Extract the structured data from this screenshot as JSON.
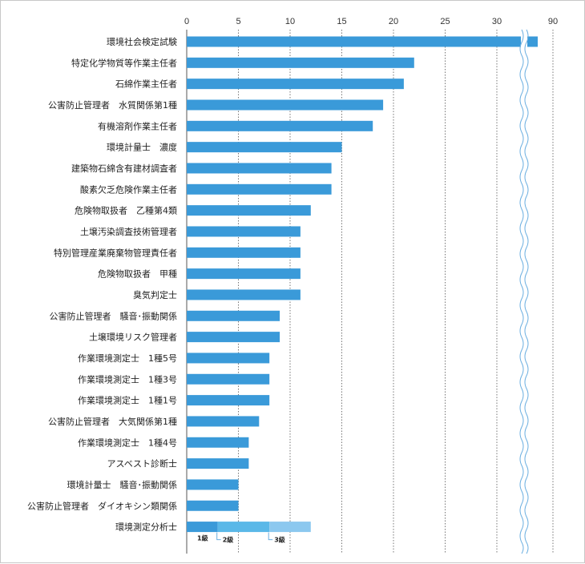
{
  "chart_data": {
    "type": "bar",
    "orientation": "horizontal",
    "title": "",
    "xlabel": "",
    "ylabel": "",
    "xlim": [
      0,
      30
    ],
    "x_break": {
      "after": 30,
      "resume_at": 90
    },
    "x_ticks": [
      0,
      5,
      10,
      15,
      20,
      25,
      30,
      90
    ],
    "grid": "vertical dotted",
    "bar_color": "#3a9ad9",
    "stack_colors": [
      "#3a9ad9",
      "#5ab8e8",
      "#8cc8ef"
    ],
    "categories": [
      "環境社会検定試験",
      "特定化学物質等作業主任者",
      "石綿作業主任者",
      "公害防止管理者　水質関係第1種",
      "有機溶剤作業主任者",
      "環境計量士　濃度",
      "建築物石綿含有建材調査者",
      "酸素欠乏危険作業主任者",
      "危険物取扱者　乙種第4類",
      "土壌汚染調査技術管理者",
      "特別管理産業廃棄物管理責任者",
      "危険物取扱者　甲種",
      "臭気判定士",
      "公害防止管理者　騒音･振動関係",
      "土壌環境リスク管理者",
      "作業環境測定士　1種5号",
      "作業環境測定士　1種3号",
      "作業環境測定士　1種1号",
      "公害防止管理者　大気関係第1種",
      "作業環境測定士　1種4号",
      "アスベスト診断士",
      "環境計量士　騒音･振動関係",
      "公害防止管理者　ダイオキシン類関係",
      "環境測定分析士"
    ],
    "values": [
      87,
      22,
      21,
      19,
      18,
      15,
      14,
      14,
      12,
      11,
      11,
      11,
      11,
      9,
      9,
      8,
      8,
      8,
      7,
      6,
      6,
      5,
      5,
      12
    ],
    "stacked_last": {
      "category": "環境測定分析士",
      "segments": [
        {
          "name": "1級",
          "value": 3
        },
        {
          "name": "2級",
          "value": 5
        },
        {
          "name": "3級",
          "value": 4
        }
      ]
    }
  }
}
